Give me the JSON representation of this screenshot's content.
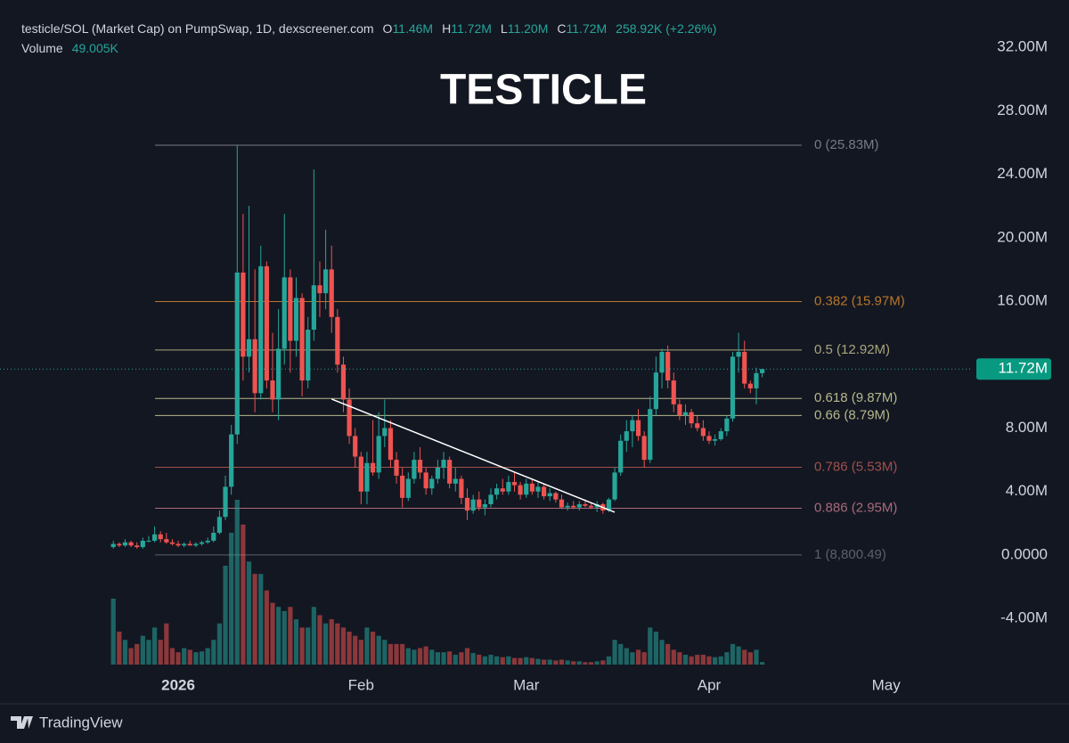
{
  "chart_data": {
    "type": "candlestick",
    "title": "TESTICLE",
    "header": {
      "symbol": "testicle/SOL (Market Cap) on PumpSwap, 1D, dexscreener.com",
      "o_label": "O",
      "o": "11.46M",
      "h_label": "H",
      "h": "11.72M",
      "l_label": "L",
      "l": "11.20M",
      "c_label": "C",
      "c": "11.72M",
      "change": "258.92K (+2.26%)",
      "volume_label": "Volume",
      "volume": "49.005K"
    },
    "up_color": "#26a69a",
    "down_color": "#ef5350",
    "x": [
      -11,
      -10,
      -9,
      -8,
      -7,
      -6,
      -5,
      -4,
      -3,
      -2,
      -1,
      0,
      1,
      2,
      3,
      4,
      5,
      6,
      7,
      8,
      9,
      10,
      11,
      12,
      13,
      14,
      15,
      16,
      17,
      18,
      19,
      20,
      21,
      22,
      23,
      24,
      25,
      26,
      27,
      28,
      29,
      30,
      31,
      32,
      33,
      34,
      35,
      36,
      37,
      38,
      39,
      40,
      41,
      42,
      43,
      44,
      45,
      46,
      47,
      48,
      49,
      50,
      51,
      52,
      53,
      54,
      55,
      56,
      57,
      58,
      59,
      60,
      61,
      62,
      63,
      64,
      65,
      66,
      67,
      68,
      69,
      70,
      71,
      72,
      73,
      74,
      75,
      76,
      77,
      78,
      79,
      80,
      81,
      82,
      83,
      84,
      85,
      86,
      87,
      88,
      89,
      90,
      91,
      92,
      93,
      94,
      95,
      96,
      97,
      98,
      99
    ],
    "open": [
      0.5,
      0.7,
      0.6,
      0.8,
      0.6,
      0.5,
      0.9,
      0.9,
      1.3,
      1.0,
      0.8,
      0.7,
      0.6,
      0.7,
      0.6,
      0.7,
      0.8,
      0.9,
      1.4,
      2.4,
      4.3,
      7.6,
      17.8,
      12.5,
      13.6,
      10.2,
      18.2,
      11.0,
      9.8,
      13.0,
      17.5,
      13.5,
      16.2,
      11.0,
      14.2,
      17.0,
      16.5,
      18.0,
      15.0,
      12.0,
      9.8,
      7.5,
      6.2,
      4.0,
      5.8,
      5.2,
      7.5,
      8.0,
      6.0,
      5.0,
      3.6,
      4.8,
      6.0,
      5.2,
      4.2,
      4.8,
      5.5,
      6.0,
      4.5,
      4.8,
      3.6,
      2.8,
      3.5,
      3.0,
      3.2,
      3.8,
      4.2,
      4.0,
      4.6,
      4.4,
      3.8,
      4.5,
      4.0,
      4.3,
      3.7,
      3.9,
      3.5,
      3.0,
      3.1,
      3.0,
      3.2,
      3.1,
      3.0,
      3.2,
      2.8,
      3.5,
      5.2,
      7.2,
      7.8,
      8.5,
      7.5,
      6.0,
      9.2,
      11.5,
      12.8,
      11.0,
      9.5,
      8.8,
      9.0,
      8.3,
      8.0,
      7.5,
      7.2,
      7.3,
      7.8,
      8.6,
      12.5,
      12.8,
      10.8,
      10.5,
      11.46
    ],
    "high": [
      0.9,
      0.8,
      1.0,
      0.9,
      0.8,
      1.1,
      1.2,
      1.8,
      1.5,
      1.4,
      1.0,
      0.9,
      0.8,
      0.9,
      0.8,
      0.9,
      1.1,
      1.8,
      2.8,
      5.0,
      8.2,
      25.8,
      21.5,
      22.0,
      18.0,
      19.5,
      18.5,
      14.0,
      15.5,
      21.5,
      18.0,
      17.5,
      16.5,
      15.0,
      24.3,
      18.5,
      20.5,
      19.5,
      15.5,
      12.5,
      10.5,
      8.0,
      6.5,
      6.5,
      8.5,
      9.0,
      9.8,
      8.5,
      6.5,
      5.5,
      5.2,
      6.5,
      6.8,
      5.5,
      5.0,
      6.0,
      6.5,
      6.2,
      5.5,
      5.0,
      4.2,
      3.8,
      4.0,
      3.5,
      4.2,
      4.5,
      4.8,
      5.0,
      5.2,
      4.6,
      4.8,
      4.8,
      4.6,
      4.5,
      4.2,
      4.0,
      3.8,
      3.3,
      3.4,
      3.4,
      3.5,
      3.3,
      3.4,
      3.3,
      3.6,
      5.5,
      7.6,
      8.5,
      8.8,
      9.2,
      7.8,
      10.0,
      12.5,
      13.0,
      13.2,
      11.5,
      9.8,
      9.5,
      9.2,
      8.8,
      8.5,
      7.8,
      7.6,
      8.0,
      8.8,
      12.8,
      14.0,
      13.5,
      11.0,
      11.8,
      11.72
    ],
    "low": [
      0.4,
      0.5,
      0.5,
      0.5,
      0.4,
      0.4,
      0.8,
      0.8,
      0.8,
      0.7,
      0.6,
      0.5,
      0.5,
      0.6,
      0.5,
      0.6,
      0.7,
      0.8,
      1.3,
      2.2,
      3.8,
      7.0,
      11.0,
      11.5,
      9.0,
      9.8,
      10.5,
      9.0,
      8.5,
      12.0,
      11.5,
      12.5,
      10.0,
      10.5,
      13.5,
      15.0,
      15.5,
      14.0,
      11.5,
      9.0,
      7.0,
      5.5,
      3.2,
      3.2,
      5.0,
      4.8,
      6.8,
      5.5,
      4.5,
      3.0,
      3.4,
      4.5,
      4.8,
      3.8,
      3.8,
      4.5,
      4.8,
      4.2,
      4.0,
      3.2,
      2.2,
      2.6,
      2.8,
      2.5,
      3.0,
      3.5,
      3.8,
      3.8,
      4.0,
      3.5,
      3.6,
      3.8,
      3.6,
      3.5,
      3.4,
      3.3,
      2.9,
      2.8,
      2.9,
      2.8,
      3.0,
      2.9,
      2.7,
      2.6,
      2.7,
      3.4,
      5.0,
      6.5,
      6.8,
      7.2,
      5.5,
      5.8,
      8.8,
      10.5,
      10.5,
      9.0,
      8.5,
      8.2,
      8.0,
      7.8,
      7.2,
      7.0,
      6.9,
      7.2,
      7.5,
      8.4,
      11.5,
      10.5,
      10.2,
      9.5,
      11.2
    ],
    "close": [
      0.7,
      0.6,
      0.8,
      0.6,
      0.5,
      0.9,
      0.9,
      1.3,
      1.0,
      0.8,
      0.7,
      0.6,
      0.7,
      0.6,
      0.7,
      0.8,
      0.9,
      1.4,
      2.4,
      4.3,
      7.6,
      17.8,
      12.5,
      13.6,
      10.2,
      18.2,
      11.0,
      9.8,
      13.0,
      17.5,
      13.5,
      16.2,
      11.0,
      14.2,
      17.0,
      16.5,
      18.0,
      15.0,
      12.0,
      9.8,
      7.5,
      6.2,
      4.0,
      5.8,
      5.2,
      7.5,
      8.0,
      6.0,
      5.0,
      3.6,
      4.8,
      6.0,
      5.2,
      4.2,
      4.8,
      5.5,
      6.0,
      4.5,
      4.8,
      3.6,
      2.8,
      3.5,
      3.0,
      3.2,
      3.8,
      4.2,
      4.0,
      4.6,
      4.4,
      3.8,
      4.5,
      4.0,
      4.3,
      3.7,
      3.9,
      3.5,
      3.0,
      3.1,
      3.0,
      3.2,
      3.1,
      3.0,
      3.2,
      2.8,
      3.5,
      5.2,
      7.2,
      7.8,
      8.5,
      7.5,
      6.0,
      9.2,
      11.5,
      12.8,
      11.0,
      9.5,
      8.8,
      9.0,
      8.3,
      8.0,
      7.5,
      7.2,
      7.3,
      7.8,
      8.6,
      12.5,
      12.8,
      10.8,
      10.5,
      11.46,
      11.72
    ],
    "volume": [
      1280,
      640,
      480,
      320,
      400,
      560,
      480,
      720,
      480,
      800,
      320,
      240,
      320,
      288,
      240,
      256,
      320,
      480,
      800,
      1920,
      2560,
      3200,
      2720,
      2000,
      1760,
      1760,
      1440,
      1200,
      1120,
      1040,
      1120,
      880,
      720,
      720,
      1120,
      960,
      800,
      880,
      800,
      720,
      640,
      560,
      480,
      720,
      640,
      560,
      480,
      400,
      400,
      400,
      320,
      288,
      320,
      352,
      288,
      240,
      240,
      256,
      192,
      240,
      320,
      224,
      192,
      160,
      192,
      160,
      144,
      160,
      128,
      128,
      144,
      128,
      112,
      96,
      96,
      80,
      96,
      80,
      64,
      64,
      48,
      48,
      64,
      80,
      160,
      480,
      400,
      320,
      240,
      288,
      240,
      720,
      640,
      480,
      400,
      288,
      240,
      192,
      160,
      192,
      192,
      160,
      144,
      160,
      240,
      400,
      352,
      288,
      240,
      288,
      49.005
    ],
    "xlim": [
      -28.4,
      134.4
    ],
    "xticks": [
      {
        "value": 0,
        "label": "2026"
      },
      {
        "value": 31,
        "label": "Feb"
      },
      {
        "value": 59,
        "label": "Mar"
      },
      {
        "value": 90,
        "label": "Apr"
      },
      {
        "value": 120,
        "label": "May"
      }
    ],
    "ylim": [
      -7.02,
      34.98
    ],
    "yticks": [
      {
        "value": 32,
        "label": "32.00M"
      },
      {
        "value": 28,
        "label": "28.00M"
      },
      {
        "value": 24,
        "label": "24.00M"
      },
      {
        "value": 20,
        "label": "20.00M"
      },
      {
        "value": 16,
        "label": "16.00M"
      },
      {
        "value": 8,
        "label": "8.00M"
      },
      {
        "value": 4,
        "label": "4.00M"
      },
      {
        "value": 0,
        "label": "0.0000"
      },
      {
        "value": -4,
        "label": "-4.00M"
      }
    ],
    "last_price": {
      "value": 11.72,
      "label": "11.72M"
    },
    "fib_levels": [
      {
        "value": 25.83,
        "label": "0 (25.83M)",
        "color": "#787b86"
      },
      {
        "value": 15.97,
        "label": "0.382 (15.97M)",
        "color": "#b8762a"
      },
      {
        "value": 12.92,
        "label": "0.5 (12.92M)",
        "color": "#a8a57a"
      },
      {
        "value": 9.87,
        "label": "0.618 (9.87M)",
        "color": "#b6b88a"
      },
      {
        "value": 8.79,
        "label": "0.66 (8.79M)",
        "color": "#b6b88a"
      },
      {
        "value": 5.53,
        "label": "0.786 (5.53M)",
        "color": "#a0504c"
      },
      {
        "value": 2.95,
        "label": "0.886 (2.95M)",
        "color": "#a86a7a"
      },
      {
        "value": 0.0088,
        "label": "1 (8,800.49)",
        "color": "#5d606b"
      }
    ],
    "trendline": {
      "x": [
        26,
        74
      ],
      "y": [
        9.83,
        2.7
      ],
      "color": "#ffffff"
    },
    "footer": "TradingView"
  }
}
